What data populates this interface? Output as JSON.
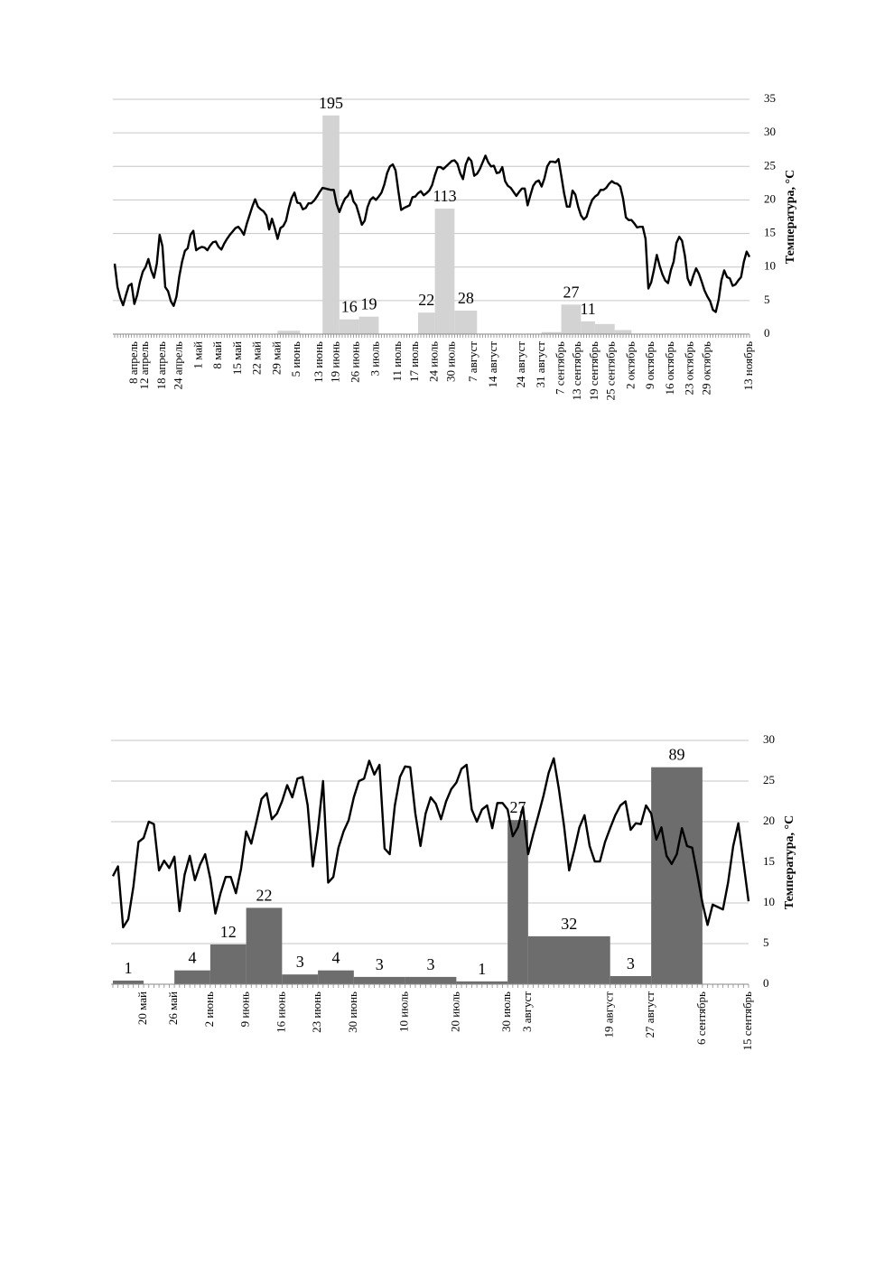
{
  "chart_data": [
    {
      "type": "combo",
      "ylabel": "Температура, °C",
      "ylim": [
        0,
        35
      ],
      "yticks": [
        0,
        5,
        10,
        15,
        20,
        25,
        30,
        35
      ],
      "grid": true,
      "yaxis_side": "right",
      "categories": [
        null,
        null,
        null,
        null,
        null,
        null,
        null,
        "8 апрель",
        null,
        null,
        null,
        "12 апрель",
        null,
        null,
        null,
        null,
        null,
        "18 апрель",
        null,
        null,
        null,
        null,
        null,
        "24 апрель",
        null,
        null,
        null,
        null,
        null,
        null,
        "1 май",
        null,
        null,
        null,
        null,
        null,
        null,
        "8 май",
        null,
        null,
        null,
        null,
        null,
        null,
        "15 май",
        null,
        null,
        null,
        null,
        null,
        null,
        "22 май",
        null,
        null,
        null,
        null,
        null,
        null,
        "29 май",
        null,
        null,
        null,
        null,
        null,
        null,
        "5 июнь",
        null,
        null,
        null,
        null,
        null,
        null,
        null,
        "13 июнь",
        null,
        null,
        null,
        null,
        null,
        "19 июнь",
        null,
        null,
        null,
        null,
        null,
        null,
        "26 июнь",
        null,
        null,
        null,
        null,
        null,
        null,
        "3 июль",
        null,
        null,
        null,
        null,
        null,
        null,
        null,
        "11 июль",
        null,
        null,
        null,
        null,
        null,
        "17 июль",
        null,
        null,
        null,
        null,
        null,
        null,
        "24 июль",
        null,
        null,
        null,
        null,
        null,
        "30 июль",
        null,
        null,
        null,
        null,
        null,
        null,
        null,
        "7 август",
        null,
        null,
        null,
        null,
        null,
        null,
        "14 август",
        null,
        null,
        null,
        null,
        null,
        null,
        null,
        null,
        null,
        "24 август",
        null,
        null,
        null,
        null,
        null,
        null,
        "31 август",
        null,
        null,
        null,
        null,
        null,
        null,
        "7 сентябрь",
        null,
        null,
        null,
        null,
        null,
        "13 сентябрь",
        null,
        null,
        null,
        null,
        null,
        "19 сентябрь",
        null,
        null,
        null,
        null,
        null,
        "25 сентябрь",
        null,
        null,
        null,
        null,
        null,
        null,
        "2 октябрь",
        null,
        null,
        null,
        null,
        null,
        null,
        "9 октябрь",
        null,
        null,
        null,
        null,
        null,
        null,
        "16 октябрь",
        null,
        null,
        null,
        null,
        null,
        null,
        "23 октябрь",
        null,
        null,
        null,
        null,
        null,
        "29 октябрь",
        null,
        null,
        null,
        null,
        null,
        null,
        null,
        null,
        null,
        null,
        null,
        null,
        null,
        null,
        "13 ноябрь"
      ],
      "line": {
        "color": "#000000",
        "values": [
          10.5,
          7,
          5.4,
          4.3,
          5.8,
          7.2,
          7.5,
          4.5,
          5.8,
          7.8,
          9.3,
          10,
          11.2,
          9.5,
          8.4,
          10.5,
          14.8,
          13.1,
          7,
          6.4,
          4.9,
          4.2,
          5.6,
          8.6,
          10.8,
          12.4,
          12.8,
          14.8,
          15.4,
          12.5,
          12.8,
          13,
          12.9,
          12.5,
          13.2,
          13.7,
          13.8,
          13,
          12.6,
          13.5,
          14.2,
          14.8,
          15.3,
          15.8,
          16,
          15.5,
          14.8,
          16.4,
          17.7,
          19,
          20.1,
          19,
          18.6,
          18.3,
          17.7,
          15.6,
          17.2,
          15.8,
          14.2,
          15.8,
          16.1,
          16.9,
          18.8,
          20.3,
          21.1,
          19.6,
          19.5,
          18.6,
          18.8,
          19.5,
          19.5,
          19.9,
          20.5,
          21.2,
          21.8,
          21.7,
          21.6,
          21.5,
          21.5,
          19.4,
          18.2,
          19.3,
          20.2,
          20.6,
          21.4,
          19.8,
          19.2,
          17.8,
          16.3,
          16.9,
          18.9,
          20,
          20.4,
          20,
          20.5,
          21.1,
          22.3,
          24,
          25,
          25.3,
          24.4,
          21.3,
          18.5,
          18.8,
          19,
          19.2,
          20.4,
          20.5,
          21,
          21.3,
          20.7,
          21,
          21.4,
          22.2,
          23.7,
          24.9,
          24.9,
          24.6,
          25,
          25.4,
          25.8,
          25.9,
          25.4,
          24,
          23.1,
          25.3,
          26.3,
          25.8,
          23.6,
          23.9,
          24.6,
          25.6,
          26.6,
          25.6,
          25,
          25.1,
          24,
          24.1,
          24.9,
          22.8,
          22.1,
          21.8,
          21.2,
          20.6,
          21.2,
          21.7,
          21.7,
          19.2,
          20.7,
          22.1,
          22.7,
          22.9,
          22,
          23.2,
          25,
          25.7,
          25.7,
          25.6,
          26.1,
          23.6,
          21,
          19,
          19,
          21.4,
          20.8,
          19,
          17.7,
          17.1,
          17.5,
          18.9,
          20,
          20.5,
          20.8,
          21.5,
          21.5,
          21.8,
          22.4,
          22.8,
          22.5,
          22.4,
          22,
          20.2,
          17.4,
          17,
          17,
          16.5,
          15.9,
          16,
          16,
          14.2,
          6.8,
          7.7,
          9.6,
          11.8,
          10.2,
          8.9,
          8,
          7.6,
          9.5,
          10.8,
          13.6,
          14.5,
          13.9,
          11.7,
          8.3,
          7.3,
          8.7,
          9.8,
          9,
          7.8,
          6.5,
          5.6,
          4.9,
          3.6,
          3.3,
          5.1,
          8,
          9.5,
          8.5,
          8.3,
          7.2,
          7.4,
          8,
          8.5,
          10.8,
          12.3,
          11.5
        ]
      },
      "bars": {
        "color": "#d3d3d3",
        "items": [
          {
            "start": 58,
            "end": 66,
            "value": 0.5
          },
          {
            "start": 74,
            "end": 80,
            "value": 32.6,
            "label": "195"
          },
          {
            "start": 80,
            "end": 87,
            "value": 2.2,
            "label": "16"
          },
          {
            "start": 87,
            "end": 94,
            "value": 2.6,
            "label": "19"
          },
          {
            "start": 108,
            "end": 114,
            "value": 3.2,
            "label": "22"
          },
          {
            "start": 114,
            "end": 121,
            "value": 18.7,
            "label": "113"
          },
          {
            "start": 121,
            "end": 129,
            "value": 3.5,
            "label": "28"
          },
          {
            "start": 152,
            "end": 159,
            "value": 0.3
          },
          {
            "start": 159,
            "end": 166,
            "value": 4.4,
            "label": "27"
          },
          {
            "start": 166,
            "end": 171,
            "value": 1.9,
            "label": "11"
          },
          {
            "start": 171,
            "end": 178,
            "value": 1.5
          },
          {
            "start": 178,
            "end": 184,
            "value": 0.6
          }
        ]
      }
    },
    {
      "type": "combo",
      "ylabel": "Температура, °C",
      "ylim": [
        0,
        30
      ],
      "yticks": [
        0,
        5,
        10,
        15,
        20,
        25,
        30
      ],
      "grid": true,
      "yaxis_side": "right",
      "categories": [
        null,
        null,
        null,
        null,
        null,
        null,
        "20 май",
        null,
        null,
        null,
        null,
        null,
        "26 май",
        null,
        null,
        null,
        null,
        null,
        null,
        "2 июнь",
        null,
        null,
        null,
        null,
        null,
        null,
        "9 июнь",
        null,
        null,
        null,
        null,
        null,
        null,
        "16 июнь",
        null,
        null,
        null,
        null,
        null,
        null,
        "23 июнь",
        null,
        null,
        null,
        null,
        null,
        null,
        "30 июнь",
        null,
        null,
        null,
        null,
        null,
        null,
        null,
        null,
        null,
        "10 июль",
        null,
        null,
        null,
        null,
        null,
        null,
        null,
        null,
        null,
        "20 июль",
        null,
        null,
        null,
        null,
        null,
        null,
        null,
        null,
        null,
        "30 июль",
        null,
        null,
        null,
        "3 август",
        null,
        null,
        null,
        null,
        null,
        null,
        null,
        null,
        null,
        null,
        null,
        null,
        null,
        null,
        null,
        "19 август",
        null,
        null,
        null,
        null,
        null,
        null,
        null,
        "27 август",
        null,
        null,
        null,
        null,
        null,
        null,
        null,
        null,
        null,
        "6 сентябрь",
        null,
        null,
        null,
        null,
        null,
        null,
        null,
        null,
        "15 сентябрь"
      ],
      "line": {
        "color": "#000000",
        "values": [
          13.3,
          14.5,
          7,
          8,
          12,
          17.5,
          18,
          20,
          19.7,
          14,
          15.2,
          14.3,
          15.7,
          9,
          13.5,
          15.8,
          12.8,
          14.7,
          16,
          13,
          8.7,
          11.2,
          13.2,
          13.2,
          11.2,
          14.2,
          18.8,
          17.3,
          20,
          22.8,
          23.5,
          20.3,
          21,
          22.5,
          24.5,
          23,
          25.3,
          25.5,
          22,
          14.5,
          19,
          25,
          12.5,
          13.2,
          16.8,
          18.8,
          20.2,
          23,
          25,
          25.3,
          27.5,
          25.8,
          27,
          16.7,
          16,
          22,
          25.5,
          26.8,
          26.7,
          21,
          17,
          21,
          23,
          22.2,
          20.3,
          22.5,
          24,
          24.8,
          26.5,
          27,
          21.5,
          20,
          21.5,
          22,
          19.2,
          22.3,
          22.3,
          21.5,
          18.2,
          19.3,
          21.8,
          16,
          18.5,
          20.8,
          23.2,
          26,
          27.8,
          24,
          19.5,
          14,
          16.5,
          19.3,
          20.8,
          17,
          15.1,
          15.1,
          17.5,
          19.2,
          20.8,
          22,
          22.5,
          19,
          19.8,
          19.7,
          22,
          21,
          17.8,
          19.3,
          15.8,
          14.8,
          16,
          19.2,
          17,
          16.8,
          13.5,
          10,
          7.3,
          9.8,
          9.5,
          9.2,
          12.5,
          17,
          19.8,
          15,
          10.2
        ]
      },
      "bars": {
        "color": "#6d6d6d",
        "items": [
          {
            "start": 0,
            "end": 6,
            "value": 0.45,
            "label": "1"
          },
          {
            "start": 12,
            "end": 19,
            "value": 1.7,
            "label": "4"
          },
          {
            "start": 19,
            "end": 26,
            "value": 4.9,
            "label": "12"
          },
          {
            "start": 26,
            "end": 33,
            "value": 9.4,
            "label": "22"
          },
          {
            "start": 33,
            "end": 40,
            "value": 1.2,
            "label": "3"
          },
          {
            "start": 40,
            "end": 47,
            "value": 1.7,
            "label": "4"
          },
          {
            "start": 47,
            "end": 57,
            "value": 0.9,
            "label": "3"
          },
          {
            "start": 57,
            "end": 67,
            "value": 0.9,
            "label": "3"
          },
          {
            "start": 67,
            "end": 77,
            "value": 0.35,
            "label": "1"
          },
          {
            "start": 77,
            "end": 81,
            "value": 20.2,
            "label": "27"
          },
          {
            "start": 81,
            "end": 97,
            "value": 5.9,
            "label": "32"
          },
          {
            "start": 97,
            "end": 105,
            "value": 1.0,
            "label": "3"
          },
          {
            "start": 105,
            "end": 115,
            "value": 26.7,
            "label": "89"
          }
        ]
      }
    }
  ]
}
